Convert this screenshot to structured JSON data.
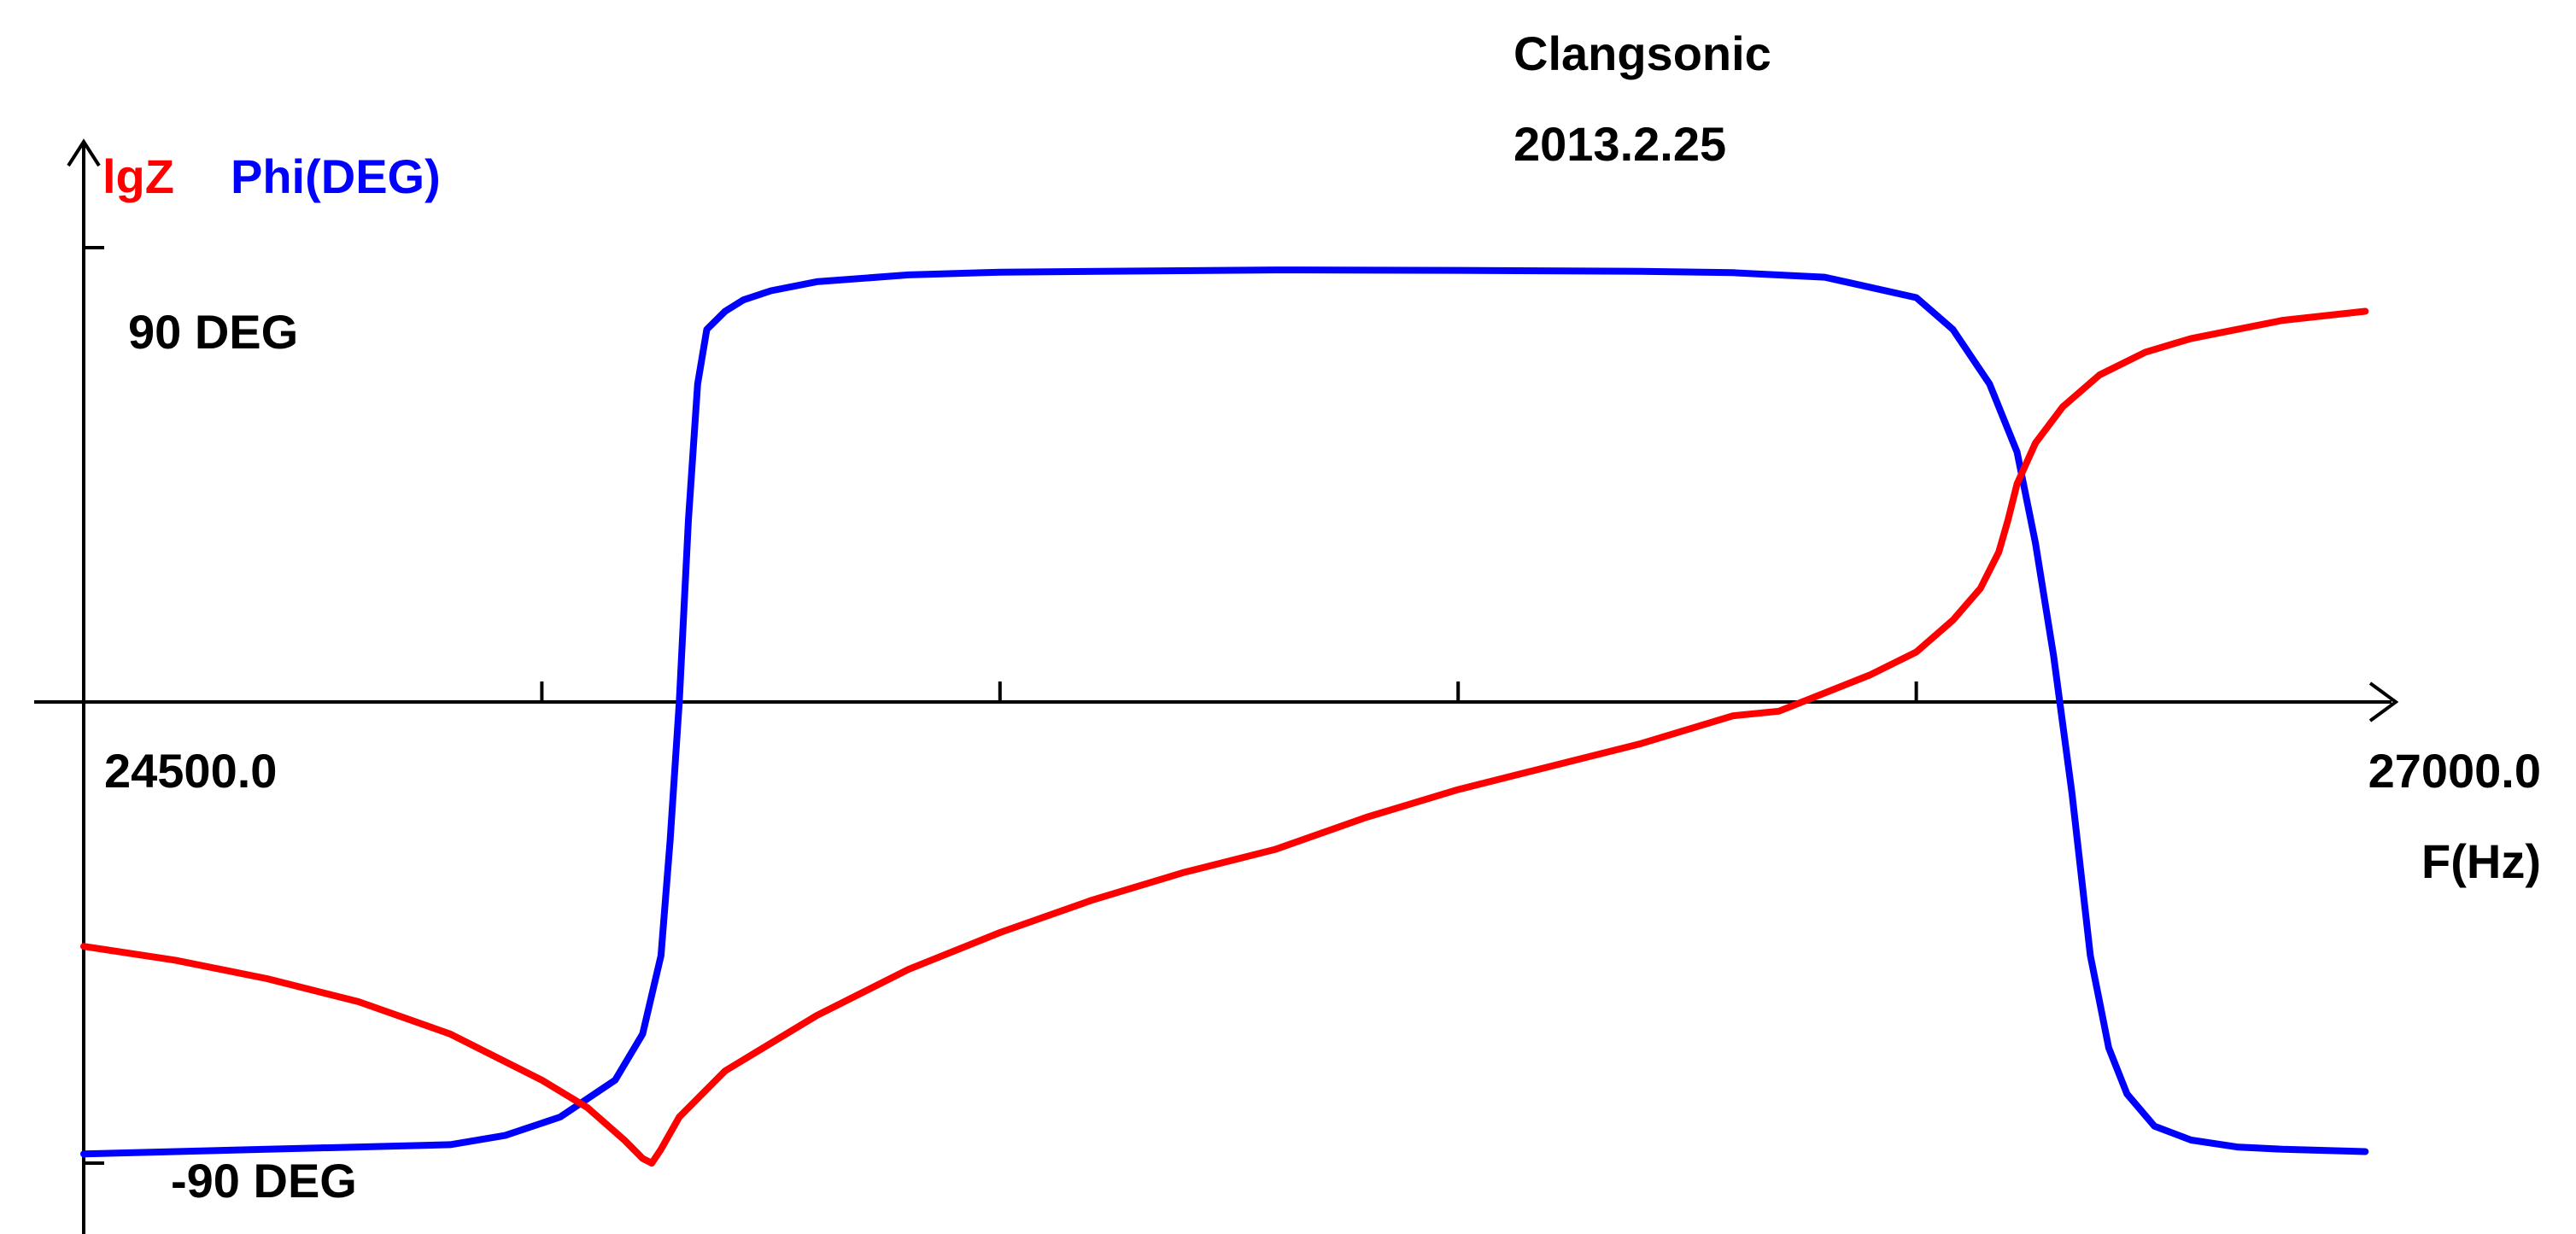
{
  "chart_data": {
    "type": "line",
    "header": [
      "Clangsonic",
      "2013.2.25"
    ],
    "legend": [
      {
        "label": "lgZ",
        "color": "#ff0000"
      },
      {
        "label": "Phi(DEG)",
        "color": "#0000ff"
      }
    ],
    "xlabel": "F(Hz)",
    "x_tick_labels": {
      "min": "24500.0",
      "max": "27000.0"
    },
    "xlim": [
      24500.0,
      27000.0
    ],
    "x_minor_ticks": [
      25000,
      25500,
      26000,
      26500
    ],
    "y_tick_labels": {
      "top": "90 DEG",
      "bottom": "-90 DEG"
    },
    "phase_ylim": [
      -100,
      100
    ],
    "grid": false,
    "series": [
      {
        "name": "Phi(DEG)",
        "color": "#0000ff",
        "axis": "phase",
        "x": [
          24500,
          24700,
          24900,
          24960,
          25020,
          25080,
          25110,
          25130,
          25140,
          25150,
          25160,
          25170,
          25180,
          25200,
          25220,
          25250,
          25300,
          25400,
          25500,
          25800,
          26000,
          26200,
          26300,
          26400,
          26500,
          26540,
          26580,
          26610,
          26630,
          26650,
          26670,
          26690,
          26700,
          26710,
          26730,
          26760,
          26800,
          26850,
          26900,
          26990
        ],
        "y": [
          -98,
          -97,
          -96,
          -94,
          -90,
          -82,
          -72,
          -55,
          -30,
          0,
          40,
          70,
          82,
          86,
          88.5,
          90.5,
          92.5,
          94,
          94.6,
          95.1,
          95,
          94.8,
          94.5,
          93.5,
          89,
          82,
          70,
          55,
          35,
          10,
          -20,
          -55,
          -65,
          -75,
          -85,
          -92,
          -95,
          -96.5,
          -97,
          -97.5
        ]
      },
      {
        "name": "lgZ",
        "color": "#ff0000",
        "axis": "impedance",
        "x": [
          24500,
          24600,
          24700,
          24800,
          24900,
          25000,
          25050,
          25090,
          25110,
          25120,
          25130,
          25150,
          25200,
          25300,
          25400,
          25500,
          25600,
          25700,
          25800,
          25900,
          26000,
          26100,
          26200,
          26300,
          26350,
          26450,
          26500,
          26540,
          26570,
          26590,
          26600,
          26610,
          26630,
          26660,
          26700,
          26750,
          26800,
          26900,
          26990
        ],
        "y": [
          -53,
          -56,
          -60,
          -65,
          -72,
          -82,
          -88,
          -95,
          -99,
          -100,
          -97,
          -90,
          -80,
          -68,
          -58,
          -50,
          -43,
          -37,
          -32,
          -25,
          -19,
          -14,
          -9,
          -3,
          -2,
          6,
          11,
          18,
          25,
          33,
          40,
          48,
          57,
          65,
          72,
          77,
          80,
          84,
          86
        ]
      }
    ]
  }
}
